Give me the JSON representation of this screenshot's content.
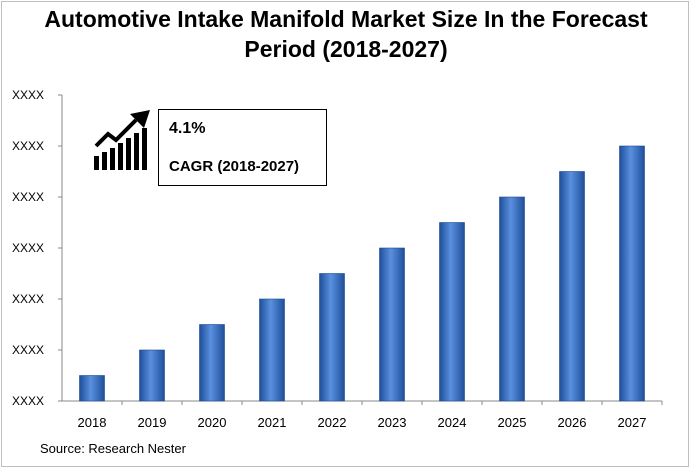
{
  "chart_data": {
    "type": "bar",
    "title": [
      "Automotive Intake Manifold Market Size In the Forecast",
      "Period (2018-2027)"
    ],
    "categories": [
      "2018",
      "2019",
      "2020",
      "2021",
      "2022",
      "2023",
      "2024",
      "2025",
      "2026",
      "2027"
    ],
    "values": [
      1,
      2,
      3,
      4,
      5,
      6,
      7,
      8,
      9,
      10
    ],
    "ylim": [
      0,
      12
    ],
    "y_ticks": [
      0,
      2,
      4,
      6,
      8,
      10,
      12
    ],
    "y_tick_label": "XXXX",
    "grid": false,
    "bar_color": "#3f78c8"
  },
  "callout": {
    "value": "4.1%",
    "label": "CAGR (2018-2027)",
    "icon": "growth-chart-icon"
  },
  "source": "Source: Research Nester"
}
